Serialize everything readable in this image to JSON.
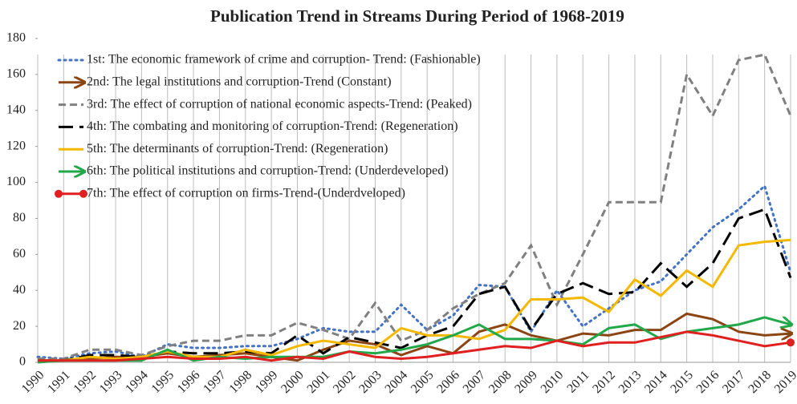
{
  "chart_data": {
    "type": "line",
    "title": "Publication Trend in Streams During Period of 1968-2019",
    "categories": [
      "1990",
      "1991",
      "1992",
      "1993",
      "1994",
      "1995",
      "1996",
      "1997",
      "1998",
      "1999",
      "2000",
      "2001",
      "2002",
      "2003",
      "2004",
      "2005",
      "2006",
      "2007",
      "2008",
      "2009",
      "2010",
      "2011",
      "2012",
      "2013",
      "2014",
      "2015",
      "2016",
      "2017",
      "2018",
      "2019"
    ],
    "ylim": [
      0,
      180
    ],
    "yticks": [
      0,
      20,
      40,
      60,
      80,
      100,
      120,
      140,
      160,
      180
    ],
    "grid": true,
    "legend": "top-left",
    "series": [
      {
        "name": "1st: The economic framework of crime and corruption- Trend: (Fashionable)",
        "color": "#4472c4",
        "dash": "dotted",
        "values": [
          3,
          2,
          5,
          6,
          3,
          10,
          8,
          8,
          9,
          9,
          13,
          19,
          17,
          17,
          32,
          18,
          26,
          43,
          42,
          17,
          40,
          20,
          30,
          40,
          45,
          60,
          75,
          85,
          98,
          50
        ]
      },
      {
        "name": "2nd: The legal institutions and corruption-Trend (Constant)",
        "color": "#8b4513",
        "marker": "arrow",
        "values": [
          1,
          1,
          2,
          3,
          3,
          5,
          3,
          4,
          5,
          3,
          1,
          7,
          12,
          10,
          4,
          9,
          5,
          17,
          21,
          15,
          12,
          16,
          15,
          18,
          18,
          27,
          24,
          17,
          15,
          16
        ]
      },
      {
        "name": "3rd: The effect of corruption of national economic aspects-Trend: (Peaked)",
        "color": "#808080",
        "dash": "dashed",
        "values": [
          2,
          2,
          7,
          7,
          4,
          9,
          12,
          12,
          15,
          15,
          22,
          18,
          13,
          33,
          12,
          18,
          30,
          38,
          44,
          65,
          32,
          60,
          89,
          89,
          89,
          160,
          137,
          168,
          171,
          137
        ]
      },
      {
        "name": "4th: The combating and monitoring of corruption-Trend: (Regeneration)",
        "color": "#000000",
        "dash": "longdash",
        "values": [
          1,
          1,
          4,
          4,
          3,
          6,
          5,
          5,
          6,
          5,
          15,
          5,
          14,
          11,
          8,
          15,
          20,
          38,
          42,
          18,
          38,
          44,
          38,
          39,
          55,
          42,
          55,
          80,
          85,
          47
        ]
      },
      {
        "name": "5th: The determinants of corruption-Trend: (Regeneration)",
        "color": "#f5b800",
        "values": [
          1,
          1,
          3,
          2,
          3,
          6,
          3,
          3,
          7,
          4,
          9,
          12,
          10,
          8,
          19,
          15,
          15,
          13,
          18,
          35,
          35,
          36,
          28,
          46,
          37,
          51,
          42,
          65,
          67,
          68
        ]
      },
      {
        "name": "6th: The political institutions and corruption-Trend: (Underdeveloped)",
        "color": "#22a84a",
        "marker": "arrow",
        "values": [
          0,
          1,
          1,
          1,
          1,
          7,
          1,
          3,
          2,
          3,
          3,
          3,
          6,
          5,
          7,
          10,
          15,
          21,
          13,
          13,
          12,
          10,
          19,
          21,
          13,
          17,
          19,
          21,
          25,
          21
        ]
      },
      {
        "name": "7th: The effect of corruption on firms-Trend-(Underdveloped)",
        "color": "#e02020",
        "marker": "dot",
        "values": [
          1,
          1,
          1,
          1,
          2,
          3,
          2,
          2,
          3,
          1,
          3,
          2,
          6,
          3,
          2,
          3,
          5,
          7,
          9,
          8,
          12,
          9,
          11,
          11,
          14,
          17,
          15,
          12,
          9,
          11
        ]
      }
    ]
  }
}
